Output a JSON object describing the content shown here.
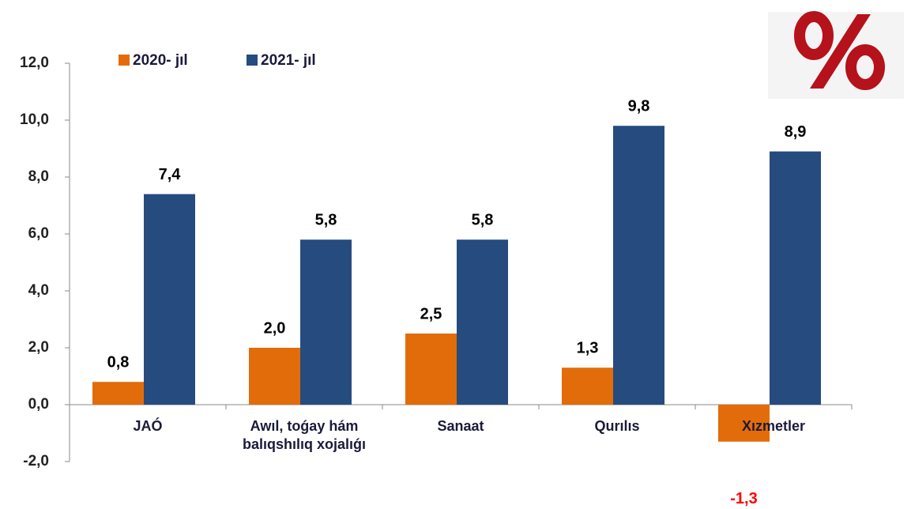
{
  "chart_data": {
    "type": "bar",
    "categories": [
      "JAÓ",
      "Awıl, toǵay hám balıqshılıq xojalıǵı",
      "Sanaat",
      "Qurılıs",
      "Xızmetler"
    ],
    "series": [
      {
        "name": "2020- jıl",
        "color": "#e36c0a",
        "values": [
          0.8,
          2.0,
          2.5,
          1.3,
          -1.3
        ],
        "value_labels": [
          "0,8",
          "2,0",
          "2,5",
          "1,3",
          "-1,3"
        ]
      },
      {
        "name": "2021- jıl",
        "color": "#254b7f",
        "values": [
          7.4,
          5.8,
          5.8,
          9.8,
          8.9
        ],
        "value_labels": [
          "7,4",
          "5,8",
          "5,8",
          "9,8",
          "8,9"
        ]
      }
    ],
    "ylim": [
      -2,
      12
    ],
    "yticks": [
      {
        "value": -2,
        "label": "-2,0"
      },
      {
        "value": 0,
        "label": "0,0"
      },
      {
        "value": 2,
        "label": "2,0"
      },
      {
        "value": 4,
        "label": "4,0"
      },
      {
        "value": 6,
        "label": "6,0"
      },
      {
        "value": 8,
        "label": "8,0"
      },
      {
        "value": 10,
        "label": "10,0"
      },
      {
        "value": 12,
        "label": "12,0"
      }
    ],
    "legend": "top"
  }
}
